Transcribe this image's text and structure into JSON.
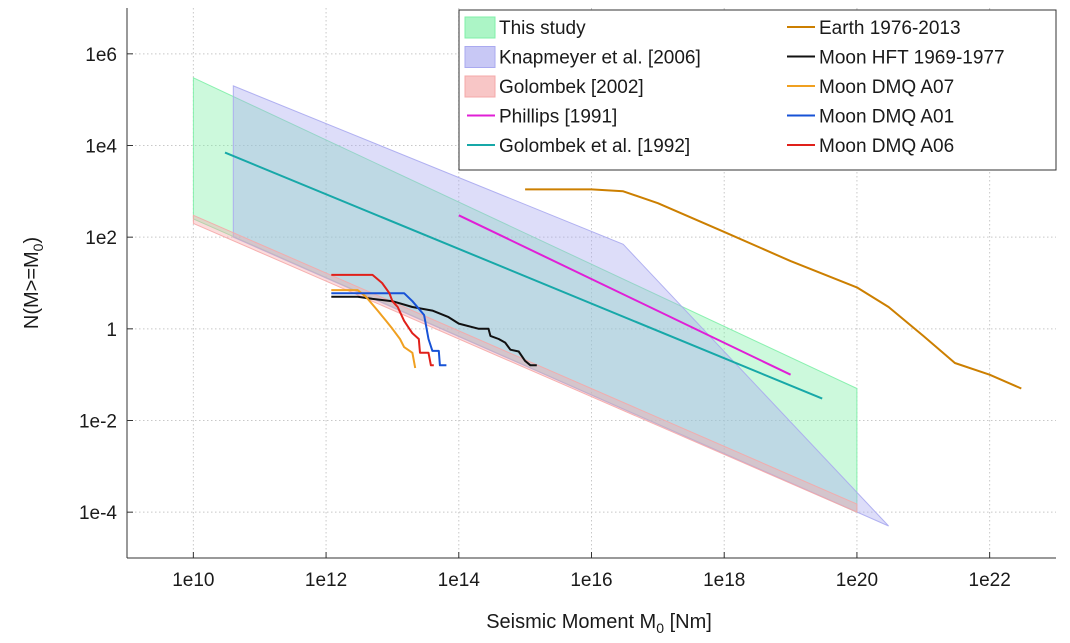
{
  "chart_data": {
    "type": "line",
    "xlabel": "Seismic Moment M",
    "xlabel_subscript": "0",
    "xlabel_suffix": " [Nm]",
    "ylabel": "N(M>=M",
    "ylabel_subscript": "0",
    "ylabel_suffix": ")",
    "xscale": "log",
    "yscale": "log",
    "xlim": [
      1000000000.0,
      1e+23
    ],
    "ylim": [
      1e-05,
      10000000.0
    ],
    "xticks": [
      10000000000.0,
      1000000000000.0,
      100000000000000.0,
      1e+16,
      1e+18,
      1e+20,
      1e+22
    ],
    "xticklabels": [
      "1e10",
      "1e12",
      "1e14",
      "1e16",
      "1e18",
      "1e20",
      "1e22"
    ],
    "yticks": [
      0.0001,
      0.01,
      1,
      100,
      10000,
      1000000
    ],
    "yticklabels": [
      "1e-4",
      "1e-2",
      "1",
      "1e2",
      "1e4",
      "1e6"
    ],
    "grid": true,
    "legend_position": "top-right",
    "bands": [
      {
        "name": "This study",
        "color": "#7ff0a8",
        "polygon": [
          [
            10000000000.0,
            300000.0
          ],
          [
            1e+20,
            0.05
          ],
          [
            1e+20,
            0.0001
          ],
          [
            10000000000.0,
            250
          ]
        ]
      },
      {
        "name": "Knapmeyer et al. [2006]",
        "color": "#aaaaf0",
        "polygon": [
          [
            40000000000.0,
            200000.0
          ],
          [
            3e+16,
            70
          ],
          [
            3e+20,
            5e-05
          ],
          [
            40000000000.0,
            100
          ]
        ]
      },
      {
        "name": "Golombek [2002]",
        "color": "#f5a8a8",
        "polygon": [
          [
            10000000000.0,
            300
          ],
          [
            1e+20,
            0.00015
          ],
          [
            1e+20,
            0.0001
          ],
          [
            10000000000.0,
            200
          ]
        ]
      }
    ],
    "series": [
      {
        "name": "Phillips [1991]",
        "color": "#e01fd6",
        "points": [
          [
            100000000000000.0,
            300
          ],
          [
            1e+19,
            0.1
          ]
        ]
      },
      {
        "name": "Golombek et al. [1992]",
        "color": "#17a8a8",
        "points": [
          [
            30000000000.0,
            7000
          ],
          [
            3e+19,
            0.03
          ]
        ]
      },
      {
        "name": "Earth 1976-2013",
        "color": "#cc7f00",
        "points": [
          [
            1000000000000000.0,
            1100
          ],
          [
            1e+16,
            1100
          ],
          [
            3e+16,
            1000
          ],
          [
            1e+17,
            550
          ],
          [
            1e+18,
            130
          ],
          [
            1e+19,
            30
          ],
          [
            1e+20,
            8
          ],
          [
            3e+20,
            3
          ],
          [
            1e+21,
            0.7
          ],
          [
            3e+21,
            0.18
          ],
          [
            1e+22,
            0.1
          ],
          [
            3e+22,
            0.05
          ]
        ]
      },
      {
        "name": "Moon HFT 1969-1977",
        "color": "#111111",
        "points": [
          [
            1200000000000.0,
            5
          ],
          [
            3000000000000.0,
            5
          ],
          [
            5000000000000.0,
            4.5
          ],
          [
            10000000000000.0,
            4
          ],
          [
            20000000000000.0,
            3
          ],
          [
            40000000000000.0,
            2.5
          ],
          [
            70000000000000.0,
            1.8
          ],
          [
            100000000000000.0,
            1.3
          ],
          [
            200000000000000.0,
            1
          ],
          [
            280000000000000.0,
            1
          ],
          [
            300000000000000.0,
            0.7
          ],
          [
            400000000000000.0,
            0.6
          ],
          [
            500000000000000.0,
            0.5
          ],
          [
            600000000000000.0,
            0.35
          ],
          [
            800000000000000.0,
            0.32
          ],
          [
            1000000000000000.0,
            0.2
          ],
          [
            1200000000000000.0,
            0.16
          ],
          [
            1500000000000000.0,
            0.16
          ]
        ]
      },
      {
        "name": "Moon DMQ A07",
        "color": "#f0a020",
        "points": [
          [
            1200000000000.0,
            7
          ],
          [
            3000000000000.0,
            7
          ],
          [
            4000000000000.0,
            5
          ],
          [
            6000000000000.0,
            2.5
          ],
          [
            8000000000000.0,
            1.5
          ],
          [
            10000000000000.0,
            1
          ],
          [
            13000000000000.0,
            0.6
          ],
          [
            15000000000000.0,
            0.4
          ],
          [
            20000000000000.0,
            0.3
          ],
          [
            22000000000000.0,
            0.14
          ]
        ]
      },
      {
        "name": "Moon DMQ A01",
        "color": "#1752d6",
        "points": [
          [
            1200000000000.0,
            6
          ],
          [
            15000000000000.0,
            6
          ],
          [
            20000000000000.0,
            4
          ],
          [
            30000000000000.0,
            2
          ],
          [
            35000000000000.0,
            0.6
          ],
          [
            40000000000000.0,
            0.33
          ],
          [
            50000000000000.0,
            0.33
          ],
          [
            52000000000000.0,
            0.16
          ],
          [
            65000000000000.0,
            0.16
          ]
        ]
      },
      {
        "name": "Moon DMQ A06",
        "color": "#e0201a",
        "points": [
          [
            1200000000000.0,
            15
          ],
          [
            5000000000000.0,
            15
          ],
          [
            7000000000000.0,
            10
          ],
          [
            9000000000000.0,
            6
          ],
          [
            10000000000000.0,
            4
          ],
          [
            12000000000000.0,
            3
          ],
          [
            15000000000000.0,
            1.5
          ],
          [
            20000000000000.0,
            0.8
          ],
          [
            25000000000000.0,
            0.6
          ],
          [
            26000000000000.0,
            0.3
          ],
          [
            35000000000000.0,
            0.3
          ],
          [
            38000000000000.0,
            0.16
          ],
          [
            42000000000000.0,
            0.16
          ]
        ]
      }
    ],
    "legend_entries": [
      {
        "name": "This study",
        "kind": "patch",
        "color": "#7ff0a8"
      },
      {
        "name": "Knapmeyer et al. [2006]",
        "kind": "patch",
        "color": "#aaaaf0"
      },
      {
        "name": "Golombek [2002]",
        "kind": "patch",
        "color": "#f5a8a8"
      },
      {
        "name": "Phillips [1991]",
        "kind": "line",
        "color": "#e01fd6"
      },
      {
        "name": "Golombek et al. [1992]",
        "kind": "line",
        "color": "#17a8a8"
      },
      {
        "name": "Earth 1976-2013",
        "kind": "line",
        "color": "#cc7f00"
      },
      {
        "name": "Moon HFT 1969-1977",
        "kind": "line",
        "color": "#111111"
      },
      {
        "name": "Moon DMQ A07",
        "kind": "line",
        "color": "#f0a020"
      },
      {
        "name": "Moon DMQ A01",
        "kind": "line",
        "color": "#1752d6"
      },
      {
        "name": "Moon DMQ A06",
        "kind": "line",
        "color": "#e0201a"
      }
    ]
  }
}
